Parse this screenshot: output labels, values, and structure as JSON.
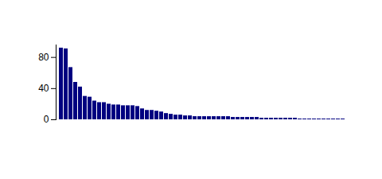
{
  "chart_data": {
    "type": "bar",
    "categories": [
      null,
      null,
      null,
      null,
      null,
      null,
      null,
      null,
      null,
      null,
      null,
      null,
      null,
      null,
      null,
      null,
      null,
      null,
      null,
      null,
      null,
      null,
      null,
      null,
      null,
      null,
      null,
      null,
      null,
      null,
      null,
      null,
      null,
      null,
      null,
      null,
      null,
      null,
      null,
      null,
      null,
      null,
      null,
      null,
      null,
      null,
      null,
      null,
      null,
      null,
      null,
      null,
      null,
      null,
      null,
      null,
      null,
      null,
      null,
      null
    ],
    "values": [
      92,
      91,
      67,
      48,
      42,
      30,
      29,
      24,
      22,
      22,
      20,
      19,
      19,
      18,
      18,
      18,
      17,
      14,
      12,
      12,
      11,
      10,
      8,
      7,
      6,
      6,
      5,
      5,
      4,
      4,
      4,
      4,
      4,
      4,
      4,
      4,
      3,
      3,
      3,
      3,
      3,
      3,
      2,
      2,
      2,
      2,
      2,
      2,
      2,
      2,
      1,
      1,
      1,
      1,
      1,
      1,
      1,
      1,
      1,
      1
    ],
    "color": "#000080",
    "ylim": [
      0,
      96
    ],
    "yticks": [
      0,
      40,
      80
    ],
    "tick_labels": "y"
  }
}
